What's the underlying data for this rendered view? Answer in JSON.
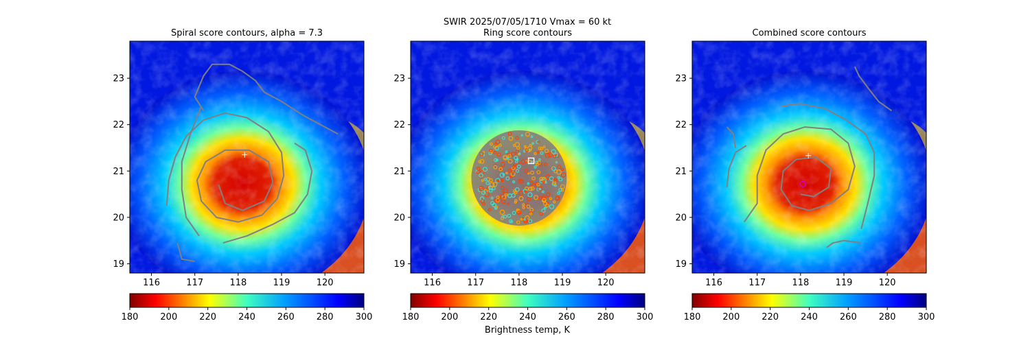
{
  "figure": {
    "suptitle_line1": "SWIR  2025/07/05/1710    Vmax = 60 kt",
    "colorbar_label": "Brightness temp, K"
  },
  "chart_data": [
    {
      "type": "heatmap",
      "title": "Spiral score contours, alpha =  7.3",
      "xlim": [
        115.5,
        120.9
      ],
      "ylim": [
        18.8,
        23.8
      ],
      "xticks": [
        "116",
        "117",
        "118",
        "119",
        "120"
      ],
      "yticks": [
        "19",
        "20",
        "21",
        "22",
        "23"
      ],
      "colorbar": {
        "range": [
          180,
          300
        ],
        "ticks": [
          "180",
          "200",
          "220",
          "240",
          "260",
          "280",
          "300"
        ],
        "colormap": "jet_r"
      },
      "eye_center": {
        "lon": 118.1,
        "lat": 20.6
      },
      "markers": [
        {
          "type": "plus",
          "lon": 118.15,
          "lat": 21.35,
          "color": "#ffffff"
        }
      ],
      "contour_color": "#808080",
      "contours": [
        [
          [
            116.35,
            20.25
          ],
          [
            116.4,
            20.8
          ],
          [
            116.55,
            21.3
          ],
          [
            116.8,
            21.75
          ],
          [
            117.2,
            22.1
          ],
          [
            117.7,
            22.25
          ],
          [
            118.2,
            22.15
          ],
          [
            118.7,
            21.85
          ],
          [
            119.0,
            21.4
          ],
          [
            119.05,
            20.9
          ],
          [
            118.9,
            20.4
          ],
          [
            118.55,
            20.05
          ],
          [
            118.0,
            19.9
          ],
          [
            117.5,
            20.0
          ],
          [
            117.15,
            20.35
          ],
          [
            117.05,
            20.8
          ],
          [
            117.25,
            21.2
          ],
          [
            117.7,
            21.45
          ],
          [
            118.25,
            21.45
          ],
          [
            118.7,
            21.2
          ],
          [
            118.8,
            20.75
          ],
          [
            118.6,
            20.35
          ],
          [
            118.1,
            20.15
          ],
          [
            117.7,
            20.3
          ],
          [
            117.55,
            20.7
          ]
        ],
        [
          [
            116.6,
            19.45
          ],
          [
            116.7,
            19.1
          ],
          [
            117.0,
            19.05
          ]
        ],
        [
          [
            117.15,
            22.4
          ],
          [
            116.9,
            21.8
          ],
          [
            116.7,
            21.2
          ],
          [
            116.7,
            20.6
          ],
          [
            116.8,
            20.0
          ],
          [
            117.1,
            19.6
          ]
        ],
        [
          [
            117.65,
            19.45
          ],
          [
            118.2,
            19.6
          ],
          [
            118.8,
            19.85
          ],
          [
            119.3,
            20.1
          ],
          [
            119.6,
            20.5
          ],
          [
            119.7,
            21.0
          ],
          [
            119.55,
            21.45
          ],
          [
            119.3,
            21.6
          ]
        ],
        [
          [
            120.3,
            21.8
          ],
          [
            120.0,
            21.95
          ],
          [
            119.5,
            22.2
          ],
          [
            119.0,
            22.5
          ],
          [
            118.6,
            22.7
          ],
          [
            118.4,
            22.95
          ],
          [
            118.1,
            23.15
          ],
          [
            117.8,
            23.3
          ],
          [
            117.4,
            23.3
          ],
          [
            117.2,
            23.05
          ],
          [
            117.0,
            22.6
          ],
          [
            117.2,
            22.3
          ]
        ]
      ]
    },
    {
      "type": "heatmap",
      "title": "Ring score contours",
      "xlim": [
        115.5,
        120.9
      ],
      "ylim": [
        18.8,
        23.8
      ],
      "xticks": [
        "116",
        "117",
        "118",
        "119",
        "120"
      ],
      "yticks": [
        "19",
        "20",
        "21",
        "22",
        "23"
      ],
      "colorbar": {
        "range": [
          180,
          300
        ],
        "ticks": [
          "180",
          "200",
          "220",
          "240",
          "260",
          "280",
          "300"
        ],
        "colormap": "jet_r"
      },
      "eye_center": {
        "lon": 118.1,
        "lat": 20.6
      },
      "markers": [
        {
          "type": "square",
          "lon": 118.28,
          "lat": 21.22,
          "color": "#ffffff"
        }
      ],
      "ring_field": {
        "lon": 118.0,
        "lat": 20.85,
        "radius_deg": 1.1,
        "colors": [
          "#808080",
          "#40e0d0"
        ]
      }
    },
    {
      "type": "heatmap",
      "title": "Combined score contours",
      "xlim": [
        115.5,
        120.9
      ],
      "ylim": [
        18.8,
        23.8
      ],
      "xticks": [
        "116",
        "117",
        "118",
        "119",
        "120"
      ],
      "yticks": [
        "19",
        "20",
        "21",
        "22",
        "23"
      ],
      "colorbar": {
        "range": [
          180,
          300
        ],
        "ticks": [
          "180",
          "200",
          "220",
          "240",
          "260",
          "280",
          "300"
        ],
        "colormap": "jet_r"
      },
      "eye_center": {
        "lon": 118.1,
        "lat": 20.6
      },
      "markers": [
        {
          "type": "plus",
          "lon": 118.18,
          "lat": 21.33,
          "color": "#ffffff"
        },
        {
          "type": "circle",
          "lon": 118.05,
          "lat": 20.72,
          "color": "#d000d0"
        }
      ],
      "contour_color": "#808080",
      "contours": [
        [
          [
            116.3,
            20.65
          ],
          [
            116.35,
            21.05
          ],
          [
            116.5,
            21.4
          ],
          [
            116.75,
            21.55
          ]
        ],
        [
          [
            116.3,
            21.95
          ],
          [
            116.45,
            21.8
          ],
          [
            116.5,
            21.5
          ]
        ],
        [
          [
            116.7,
            19.9
          ],
          [
            117.0,
            20.3
          ],
          [
            117.0,
            20.9
          ],
          [
            117.2,
            21.45
          ],
          [
            117.6,
            21.8
          ],
          [
            118.1,
            21.95
          ],
          [
            118.7,
            21.9
          ],
          [
            119.1,
            21.6
          ],
          [
            119.25,
            21.1
          ],
          [
            119.1,
            20.6
          ],
          [
            118.7,
            20.3
          ],
          [
            118.2,
            20.15
          ],
          [
            117.8,
            20.25
          ],
          [
            117.55,
            20.6
          ],
          [
            117.6,
            21.0
          ],
          [
            117.9,
            21.25
          ],
          [
            118.35,
            21.3
          ],
          [
            118.7,
            21.05
          ],
          [
            118.65,
            20.65
          ],
          [
            118.3,
            20.45
          ],
          [
            118.0,
            20.5
          ]
        ],
        [
          [
            119.4,
            19.75
          ],
          [
            119.55,
            20.3
          ],
          [
            119.7,
            20.9
          ],
          [
            119.7,
            21.4
          ],
          [
            119.5,
            21.8
          ],
          [
            119.05,
            22.1
          ],
          [
            118.55,
            22.35
          ],
          [
            118.0,
            22.45
          ],
          [
            117.55,
            22.4
          ]
        ],
        [
          [
            119.4,
            19.45
          ],
          [
            119.0,
            19.5
          ],
          [
            118.75,
            19.45
          ],
          [
            118.6,
            19.35
          ]
        ],
        [
          [
            120.1,
            22.3
          ],
          [
            119.8,
            22.5
          ],
          [
            119.55,
            22.8
          ],
          [
            119.35,
            23.05
          ],
          [
            119.25,
            23.25
          ]
        ]
      ]
    }
  ]
}
